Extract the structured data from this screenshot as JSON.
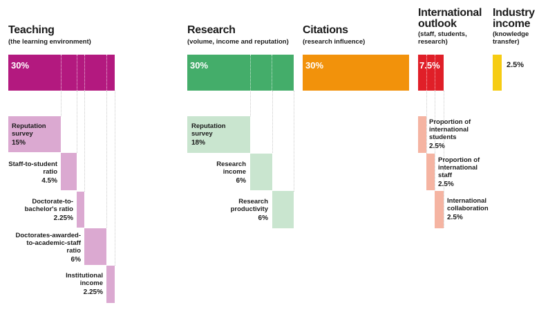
{
  "colors": {
    "teaching": "#b3197f",
    "teaching_sub": "#dba9d1",
    "research": "#44ad6a",
    "research_sub": "#c9e5cf",
    "citations": "#f2920b",
    "international": "#e01f28",
    "international_sub": "#f5b4a2",
    "industry": "#f6cc13"
  },
  "pillars": {
    "teaching": {
      "title": "Teaching",
      "subtitle": "(the learning environment)",
      "weight_label": "30%",
      "weight": 30
    },
    "research": {
      "title": "Research",
      "subtitle": "(volume, income and reputation)",
      "weight_label": "30%",
      "weight": 30
    },
    "citations": {
      "title": "Citations",
      "subtitle": "(research influence)",
      "weight_label": "30%",
      "weight": 30
    },
    "international": {
      "title_line1": "International",
      "title_line2": "outlook",
      "subtitle_line1": "(staff, students,",
      "subtitle_line2": "research)",
      "weight_label": "7.5%",
      "weight": 7.5
    },
    "industry": {
      "title_line1": "Industry",
      "title_line2": "income",
      "subtitle_line1": "(knowledge",
      "subtitle_line2": "transfer)",
      "weight_label": "2.5%",
      "weight": 2.5
    }
  },
  "teaching_subs": [
    {
      "line1": "Reputation",
      "line2": "survey",
      "line3": "",
      "pct": "15%",
      "weight": 15
    },
    {
      "line1": "Staff-to-student",
      "line2": "ratio",
      "line3": "",
      "pct": "4.5%",
      "weight": 4.5
    },
    {
      "line1": "Doctorate-to-",
      "line2": "bachelor's ratio",
      "line3": "",
      "pct": "2.25%",
      "weight": 2.25
    },
    {
      "line1": "Doctorates-awarded-",
      "line2": "to-academic-staff",
      "line3": "ratio",
      "pct": "6%",
      "weight": 6
    },
    {
      "line1": "Institutional",
      "line2": "income",
      "line3": "",
      "pct": "2.25%",
      "weight": 2.25
    }
  ],
  "research_subs": [
    {
      "line1": "Reputation",
      "line2": "survey",
      "pct": "18%",
      "weight": 18
    },
    {
      "line1": "Research",
      "line2": "income",
      "pct": "6%",
      "weight": 6
    },
    {
      "line1": "Research",
      "line2": "productivity",
      "pct": "6%",
      "weight": 6
    }
  ],
  "international_subs": [
    {
      "line1": "Proportion of",
      "line2": "international",
      "line3": "students",
      "pct": "2.5%",
      "weight": 2.5
    },
    {
      "line1": "Proportion of",
      "line2": "international",
      "line3": "staff",
      "pct": "2.5%",
      "weight": 2.5
    },
    {
      "line1": "International",
      "line2": "collaboration",
      "line3": "",
      "pct": "2.5%",
      "weight": 2.5
    }
  ]
}
